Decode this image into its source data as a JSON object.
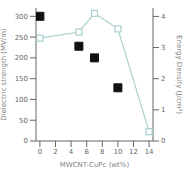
{
  "chart_data": {
    "type": "line",
    "xlabel": "MWCNT-CuPc (wt%)",
    "ylabel": "Dielectric strength (MV/m)",
    "y2label": "Energy Density (J/cm³)",
    "xlim": [
      -0.5,
      14.5
    ],
    "xticks": [
      0,
      2,
      4,
      6,
      8,
      10,
      12,
      14
    ],
    "ylim": [
      0,
      320
    ],
    "yticks": [
      0,
      50,
      100,
      150,
      200,
      250,
      300
    ],
    "y2lim": [
      0,
      4.27
    ],
    "y2ticks": [
      0,
      1,
      2,
      3,
      4
    ],
    "series": [
      {
        "type": "scatter",
        "color": "#111111",
        "marker": "square",
        "x": [
          0,
          5,
          7,
          10
        ],
        "values": [
          300,
          228,
          200,
          128
        ]
      },
      {
        "type": "line",
        "color": "#aacfcf",
        "marker": "square",
        "axis": "y2",
        "x": [
          0,
          5,
          7,
          10,
          14
        ],
        "values": [
          3.3,
          3.5,
          4.1,
          3.6,
          0.3
        ]
      }
    ]
  }
}
